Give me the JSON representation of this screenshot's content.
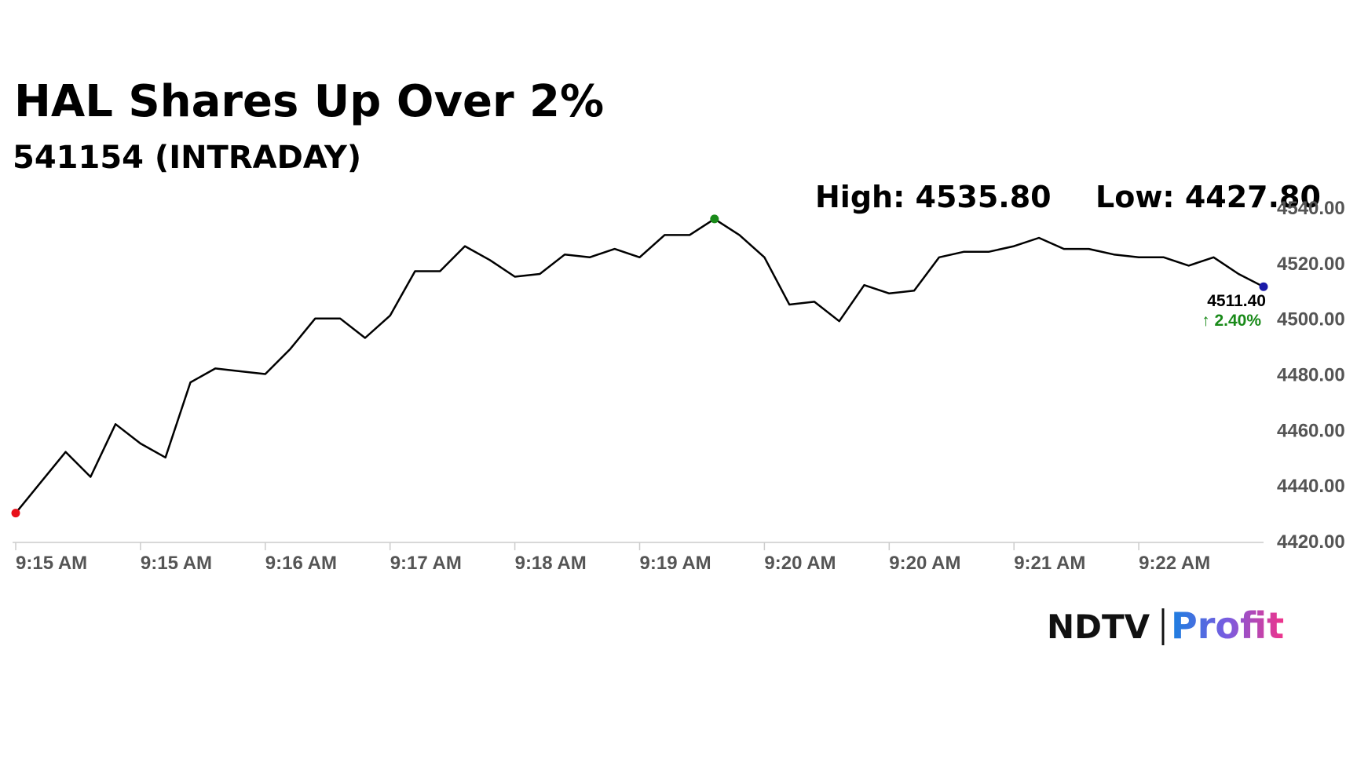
{
  "chart_data": {
    "type": "line",
    "title": "HAL Shares Up Over 2%",
    "subtitle": "541154 (INTRADAY)",
    "annotations": {
      "high": "High: 4535.80",
      "low": "Low: 4427.80",
      "last": "4511.40",
      "change": "↑ 2.40%"
    },
    "categories": [
      "9:15 AM",
      null,
      null,
      null,
      null,
      "9:15 AM",
      null,
      null,
      null,
      null,
      "9:16 AM",
      null,
      null,
      null,
      null,
      "9:17 AM",
      null,
      null,
      null,
      null,
      "9:18 AM",
      null,
      null,
      null,
      null,
      "9:19 AM",
      null,
      null,
      null,
      null,
      "9:20 AM",
      null,
      null,
      null,
      null,
      "9:20 AM",
      null,
      null,
      null,
      null,
      "9:21 AM",
      null,
      null,
      null,
      null,
      "9:22 AM",
      null,
      null,
      null,
      null,
      null
    ],
    "values": [
      4430,
      4441,
      4452,
      4443,
      4462,
      4455,
      4450,
      4477,
      4482,
      4481,
      4480,
      4489,
      4500,
      4500,
      4493,
      4501,
      4517,
      4517,
      4526,
      4521,
      4515,
      4516,
      4523,
      4522,
      4525,
      4522,
      4530,
      4530,
      4535.8,
      4530,
      4522,
      4505,
      4506,
      4499,
      4512,
      4509,
      4510,
      4522,
      4524,
      4524,
      4526,
      4529,
      4525,
      4525,
      4523,
      4522,
      4522,
      4519,
      4522,
      4516,
      4511.4
    ],
    "color": "#000000",
    "point_colors": {
      "first": "#e8101a",
      "high": "#198a19",
      "last": "#1a1aa8"
    },
    "change_color": "#198a19",
    "ylim": [
      4420,
      4540
    ],
    "yticks": [
      {
        "value": 4420,
        "label": "4420.00"
      },
      {
        "value": 4440,
        "label": "4440.00"
      },
      {
        "value": 4460,
        "label": "4460.00"
      },
      {
        "value": 4480,
        "label": "4480.00"
      },
      {
        "value": 4500,
        "label": "4500.00"
      },
      {
        "value": 4520,
        "label": "4520.00"
      },
      {
        "value": 4540,
        "label": "4540.00"
      }
    ],
    "grid": false
  },
  "logo": {
    "brand": "NDTV",
    "product": "Profit"
  }
}
